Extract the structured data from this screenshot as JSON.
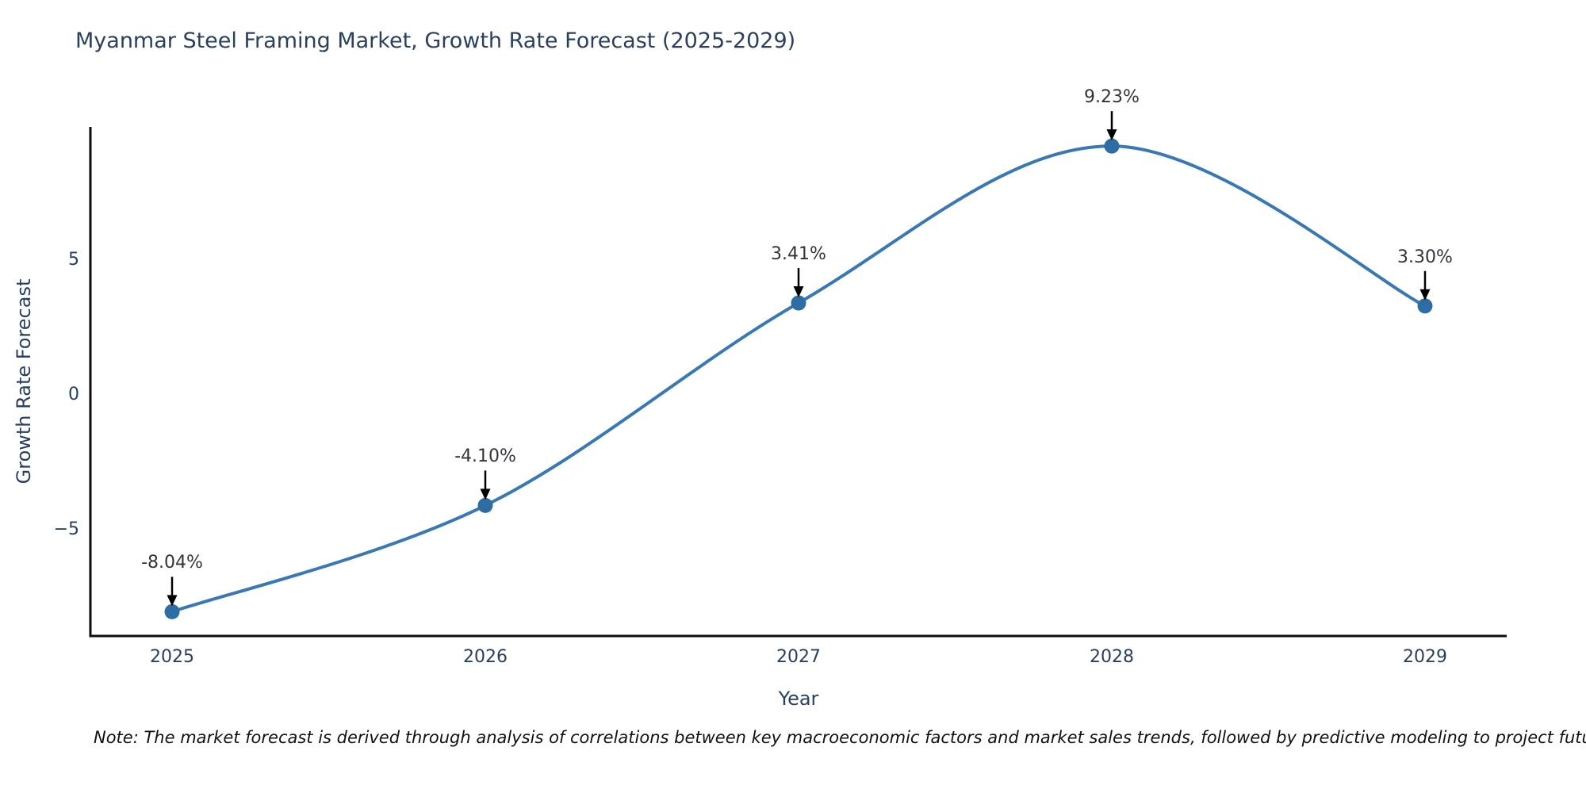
{
  "title": "Myanmar Steel Framing Market, Growth Rate Forecast (2025-2029)",
  "note": "Note: The market forecast is derived through analysis of correlations between key macroeconomic factors and market sales trends, followed by predictive modeling to project future sales",
  "chart_data": {
    "type": "line",
    "title": "Myanmar Steel Framing Market, Growth Rate Forecast (2025-2029)",
    "xlabel": "Year",
    "ylabel": "Growth Rate Forecast",
    "x": [
      "2025",
      "2026",
      "2027",
      "2028",
      "2029"
    ],
    "series": [
      {
        "name": "Growth Rate Forecast",
        "values": [
          -8.04,
          -4.1,
          3.41,
          9.23,
          3.3
        ],
        "point_labels": [
          "-8.04%",
          "-4.10%",
          "3.41%",
          "9.23%",
          "3.30%"
        ]
      }
    ],
    "yticks": [
      {
        "value": -5,
        "label": "−5"
      },
      {
        "value": 0,
        "label": "0"
      },
      {
        "value": 5,
        "label": "5"
      }
    ],
    "ylim": [
      -8.9,
      9.9
    ],
    "line_shape": "spline",
    "grid": false,
    "legend_position": "none",
    "annotations_have_arrows": true,
    "colors": {
      "line": "#3878b4",
      "marker": "#2e6da4",
      "axis_line": "#0d0d0d",
      "title_text": "#2a3f5f",
      "tick_text": "#2a3f5f",
      "annotation_text": "#30353b",
      "arrow": "#000000"
    }
  }
}
